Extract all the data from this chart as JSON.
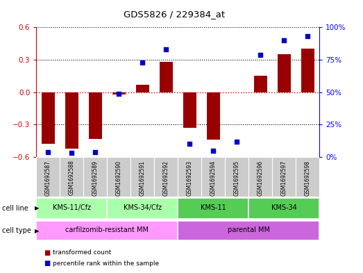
{
  "title": "GDS5826 / 229384_at",
  "samples": [
    "GSM1692587",
    "GSM1692588",
    "GSM1692589",
    "GSM1692590",
    "GSM1692591",
    "GSM1692592",
    "GSM1692593",
    "GSM1692594",
    "GSM1692595",
    "GSM1692596",
    "GSM1692597",
    "GSM1692598"
  ],
  "bar_values": [
    -0.48,
    -0.52,
    -0.43,
    -0.02,
    0.07,
    0.28,
    -0.33,
    -0.44,
    0.0,
    0.15,
    0.35,
    0.4
  ],
  "percentile_values": [
    4,
    3,
    4,
    49,
    73,
    83,
    10,
    5,
    12,
    79,
    90,
    93
  ],
  "bar_color": "#990000",
  "dot_color": "#0000cc",
  "ylim_left": [
    -0.6,
    0.6
  ],
  "ylim_right": [
    0,
    100
  ],
  "yticks_left": [
    -0.6,
    -0.3,
    0.0,
    0.3,
    0.6
  ],
  "yticks_right": [
    0,
    25,
    50,
    75,
    100
  ],
  "ytick_labels_right": [
    "0%",
    "25%",
    "50%",
    "75%",
    "100%"
  ],
  "cell_line_groups": [
    {
      "label": "KMS-11/Cfz",
      "start": 0,
      "end": 2,
      "color": "#aaffaa"
    },
    {
      "label": "KMS-34/Cfz",
      "start": 3,
      "end": 5,
      "color": "#aaffaa"
    },
    {
      "label": "KMS-11",
      "start": 6,
      "end": 8,
      "color": "#55cc55"
    },
    {
      "label": "KMS-34",
      "start": 9,
      "end": 11,
      "color": "#55cc55"
    }
  ],
  "cell_type_groups": [
    {
      "label": "carfilzomib-resistant MM",
      "start": 0,
      "end": 5,
      "color": "#ff99ff"
    },
    {
      "label": "parental MM",
      "start": 6,
      "end": 11,
      "color": "#cc66dd"
    }
  ],
  "cell_line_label": "cell line",
  "cell_type_label": "cell type",
  "legend_bar_label": "transformed count",
  "legend_dot_label": "percentile rank within the sample",
  "sample_bg_color": "#cccccc",
  "zero_line_color": "#cc0000"
}
